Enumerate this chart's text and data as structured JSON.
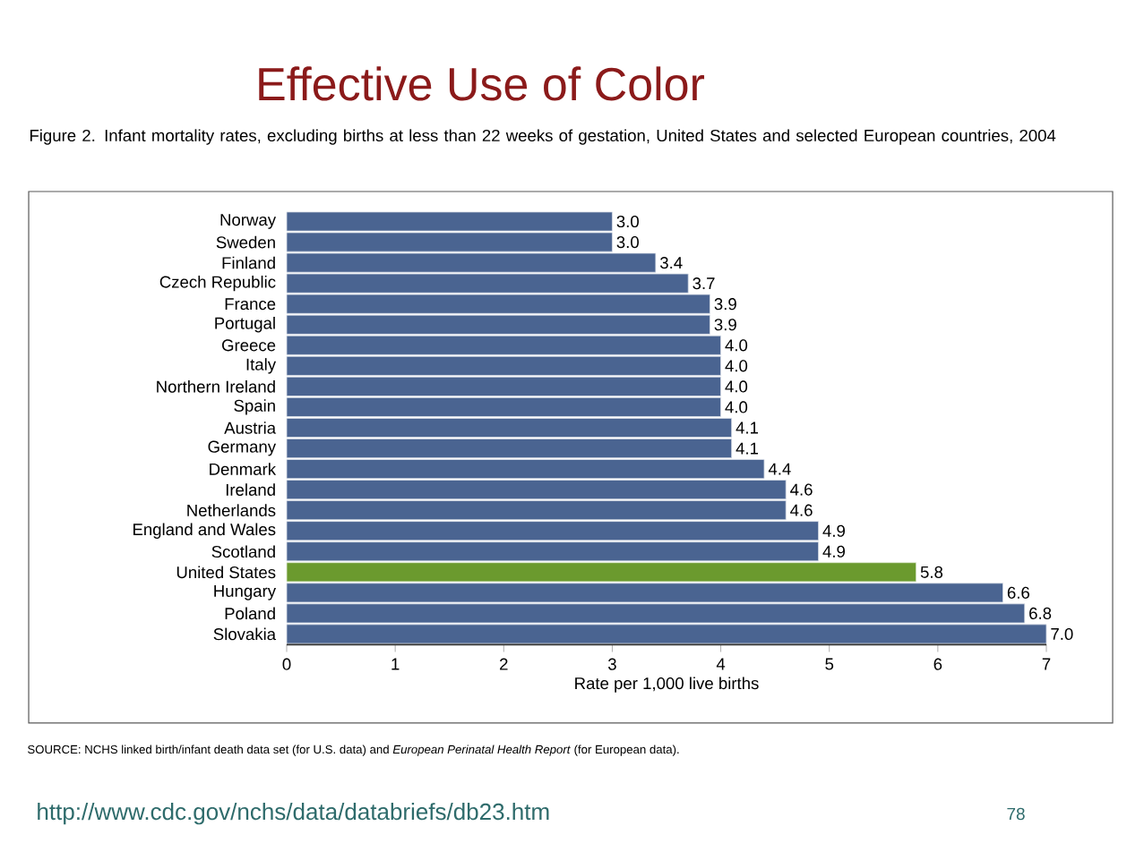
{
  "chart_data": {
    "type": "bar",
    "orientation": "horizontal",
    "title": "Effective Use of Color",
    "subtitle": "Figure 2. Infant mortality rates, excluding births at less than 22 weeks of gestation, United States and selected European countries, 2004",
    "categories": [
      "Norway",
      "Sweden",
      "Finland",
      "Czech Republic",
      "France",
      "Portugal",
      "Greece",
      "Italy",
      "Northern Ireland",
      "Spain",
      "Austria",
      "Germany",
      "Denmark",
      "Ireland",
      "Netherlands",
      "England and Wales",
      "Scotland",
      "United States",
      "Hungary",
      "Poland",
      "Slovakia"
    ],
    "values": [
      3.0,
      3.0,
      3.4,
      3.7,
      3.9,
      3.9,
      4.0,
      4.0,
      4.0,
      4.0,
      4.1,
      4.1,
      4.4,
      4.6,
      4.6,
      4.9,
      4.9,
      5.8,
      6.6,
      6.8,
      7.0
    ],
    "value_labels": [
      "3.0",
      "3.0",
      "3.4",
      "3.7",
      "3.9",
      "3.9",
      "4.0",
      "4.0",
      "4.0",
      "4.0",
      "4.1",
      "4.1",
      "4.4",
      "4.6",
      "4.6",
      "4.9",
      "4.9",
      "5.8",
      "6.6",
      "6.8",
      "7.0"
    ],
    "colors": [
      "#4a6491",
      "#4a6491",
      "#4a6491",
      "#4a6491",
      "#4a6491",
      "#4a6491",
      "#4a6491",
      "#4a6491",
      "#4a6491",
      "#4a6491",
      "#4a6491",
      "#4a6491",
      "#4a6491",
      "#4a6491",
      "#4a6491",
      "#4a6491",
      "#4a6491",
      "#6b9a2e",
      "#4a6491",
      "#4a6491",
      "#4a6491"
    ],
    "xlabel": "Rate per 1,000 live births",
    "xlim": [
      0,
      7
    ],
    "xticks": [
      0,
      1,
      2,
      3,
      4,
      5,
      6,
      7
    ],
    "annotations": [
      "SOURCE: NCHS linked birth/infant death data set (for U.S. data) and *European Perinatal Health Report* (for European data).",
      "http://www.cdc.gov/nchs/data/databriefs/db23.htm",
      "78"
    ]
  }
}
